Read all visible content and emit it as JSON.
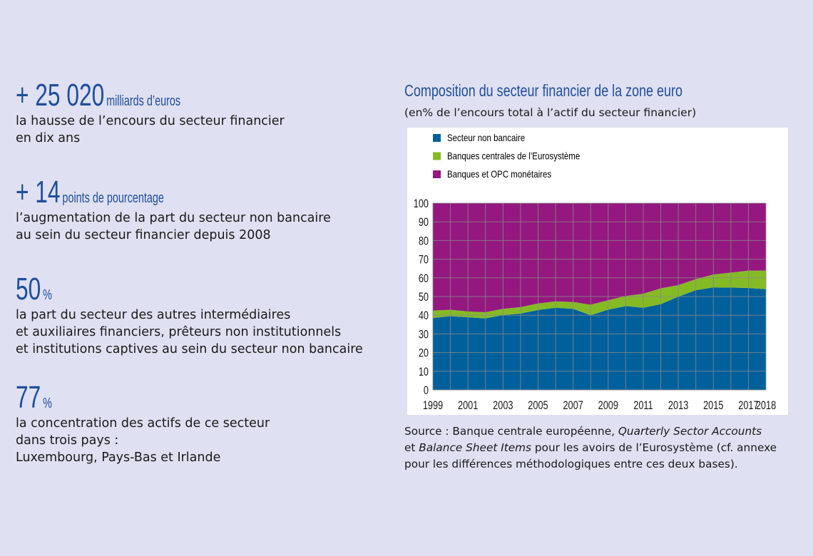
{
  "stats": [
    {
      "value": "+ 25 020",
      "unit": "milliards d’euros",
      "lines": [
        "la hausse de l’encours du secteur financier",
        "en dix ans"
      ]
    },
    {
      "value": "+ 14",
      "unit": "points de pourcentage",
      "lines": [
        "l’augmentation de la part du secteur non bancaire",
        "au sein du secteur financier depuis 2008"
      ]
    },
    {
      "value": "50",
      "unit": "%",
      "lines": [
        "la part du secteur des autres intermédiaires",
        "et auxiliaires financiers, prêteurs non institutionnels",
        "et institutions captives au sein du secteur non bancaire"
      ]
    },
    {
      "value": "77",
      "unit": "%",
      "lines": [
        "la concentration des actifs de ce secteur",
        "dans trois pays :",
        "Luxembourg, Pays-Bas et Irlande"
      ]
    }
  ],
  "source": {
    "line1_a": "Source : Banque centrale européenne, ",
    "line1_b": "Quarterly Sector Accounts",
    "line2_a": "et ",
    "line2_b": "Balance Sheet Items",
    "line2_c": " pour les avoirs de l’Eurosystème (cf. annexe",
    "line3": "pour les différences méthodologiques entre ces deux bases)."
  },
  "chart_data": {
    "type": "area",
    "stacked": true,
    "title": "Composition du secteur financier de la zone euro",
    "subtitle": "(en% de l’encours total à l’actif du secteur financier)",
    "xlabel": "",
    "ylabel": "",
    "ylim": [
      0,
      100
    ],
    "yticks": [
      0,
      10,
      20,
      30,
      40,
      50,
      60,
      70,
      80,
      90,
      100
    ],
    "x": [
      1999,
      2000,
      2001,
      2002,
      2003,
      2004,
      2005,
      2006,
      2007,
      2008,
      2009,
      2010,
      2011,
      2012,
      2013,
      2014,
      2015,
      2016,
      2017,
      2018
    ],
    "xtick_labels": [
      "1999",
      "2001",
      "2003",
      "2005",
      "2007",
      "2009",
      "2011",
      "2013",
      "2015",
      "2017",
      "2018"
    ],
    "grid": true,
    "legend_position": "top-left",
    "series": [
      {
        "name": "Secteur non bancaire",
        "color": "#00609c",
        "values": [
          38.5,
          39.5,
          38.9,
          38.3,
          40.1,
          40.9,
          42.8,
          44.0,
          43.4,
          40.0,
          43.0,
          44.9,
          44.0,
          45.9,
          49.9,
          53.4,
          54.9,
          54.8,
          54.6,
          53.9
        ]
      },
      {
        "name": "Banques centrales de l’Eurosystème",
        "color": "#84bb25",
        "values": [
          4.0,
          3.4,
          3.1,
          3.3,
          3.3,
          3.4,
          3.5,
          3.4,
          3.7,
          5.6,
          5.0,
          5.4,
          7.5,
          8.5,
          6.2,
          5.9,
          6.9,
          8.0,
          9.3,
          10.0
        ]
      },
      {
        "name": "Banques et OPC monétaires",
        "color": "#94187f",
        "values": [
          57.5,
          57.1,
          58.0,
          58.4,
          56.6,
          55.7,
          53.7,
          52.6,
          52.9,
          54.4,
          52.0,
          49.7,
          48.5,
          45.6,
          43.9,
          40.7,
          38.2,
          37.2,
          36.1,
          36.1
        ]
      }
    ]
  }
}
